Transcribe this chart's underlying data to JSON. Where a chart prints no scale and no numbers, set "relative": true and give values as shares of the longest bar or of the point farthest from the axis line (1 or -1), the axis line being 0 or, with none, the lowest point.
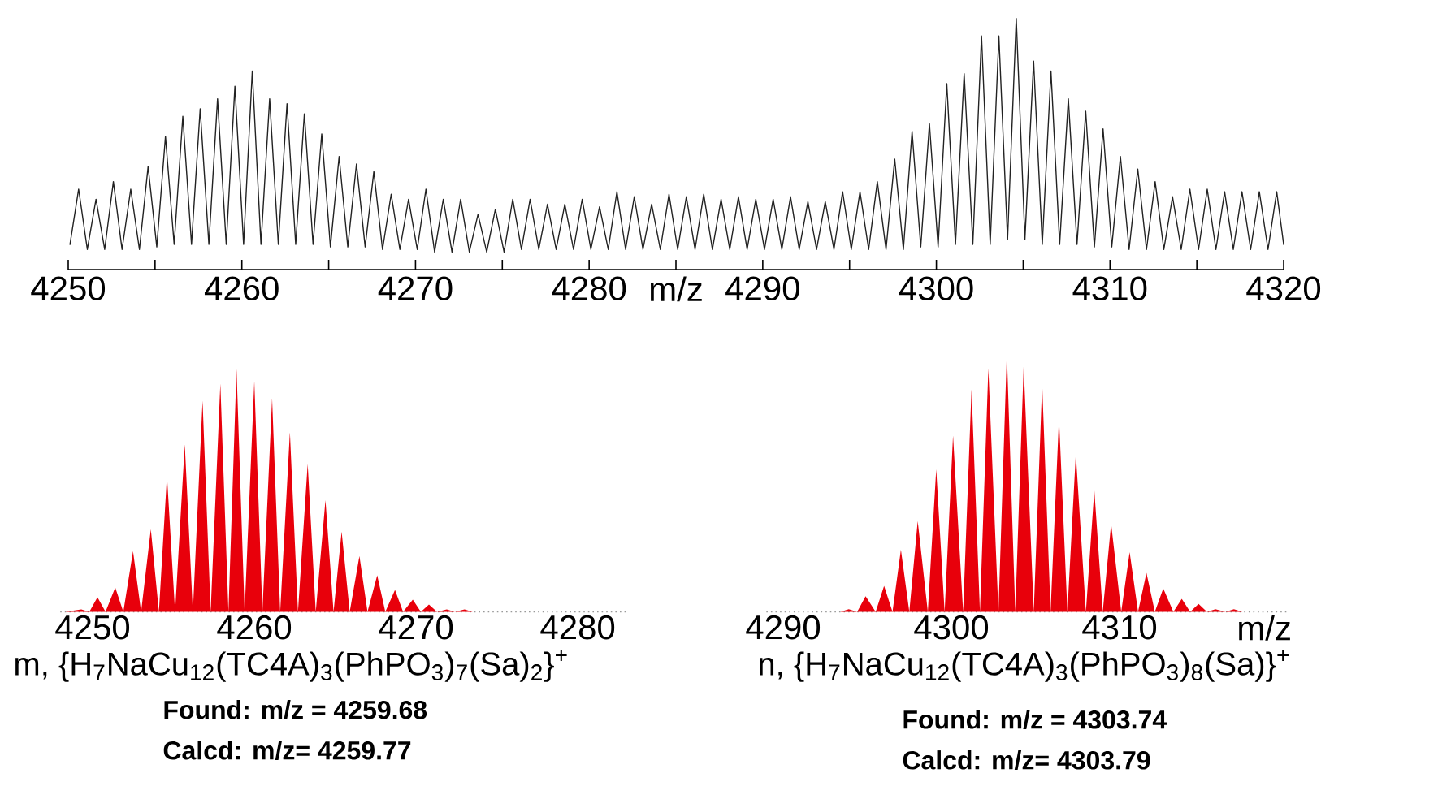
{
  "chart_data": [
    {
      "type": "line",
      "relative": true,
      "xlabel": "m/z",
      "color": "#222222",
      "xlim": [
        4250,
        4320
      ],
      "xticks": [
        4250,
        {
          "value": 4255,
          "label": null
        },
        4260,
        {
          "value": 4265,
          "label": null
        },
        4270,
        {
          "value": 4275,
          "label": null
        },
        4280,
        {
          "value": 4285,
          "label": null
        },
        4290,
        {
          "value": 4295,
          "label": null
        },
        4300,
        {
          "value": 4305,
          "label": null
        },
        4310,
        {
          "value": 4315,
          "label": null
        },
        4320
      ],
      "x": [
        4250.1,
        4250.6,
        4251.1,
        4251.6,
        4252.1,
        4252.6,
        4253.1,
        4253.6,
        4254.1,
        4254.6,
        4255.1,
        4255.6,
        4256.1,
        4256.6,
        4257.1,
        4257.6,
        4258.1,
        4258.6,
        4259.1,
        4259.6,
        4260.1,
        4260.6,
        4261.1,
        4261.6,
        4262.1,
        4262.6,
        4263.1,
        4263.6,
        4264.1,
        4264.6,
        4265.1,
        4265.6,
        4266.1,
        4266.6,
        4267.1,
        4267.6,
        4268.1,
        4268.6,
        4269.1,
        4269.6,
        4270.1,
        4270.6,
        4271.1,
        4271.6,
        4272.1,
        4272.6,
        4273.1,
        4273.6,
        4274.1,
        4274.6,
        4275.1,
        4275.6,
        4276.1,
        4276.6,
        4277.1,
        4277.6,
        4278.1,
        4278.6,
        4279.1,
        4279.6,
        4280.1,
        4280.6,
        4281.1,
        4281.6,
        4282.1,
        4282.6,
        4283.1,
        4283.6,
        4284.1,
        4284.6,
        4285.1,
        4285.6,
        4286.1,
        4286.6,
        4287.1,
        4287.6,
        4288.1,
        4288.6,
        4289.1,
        4289.6,
        4290.1,
        4290.6,
        4291.1,
        4291.6,
        4292.1,
        4292.6,
        4293.1,
        4293.6,
        4294.1,
        4294.6,
        4295.1,
        4295.6,
        4296.1,
        4296.6,
        4297.1,
        4297.6,
        4298.1,
        4298.6,
        4299.1,
        4299.6,
        4300.1,
        4300.6,
        4301.1,
        4301.6,
        4302.1,
        4302.6,
        4303.1,
        4303.6,
        4304.1,
        4304.6,
        4305.1,
        4305.6,
        4306.1,
        4306.6,
        4307.1,
        4307.6,
        4308.1,
        4308.6,
        4309.1,
        4309.6,
        4310.1,
        4310.6,
        4311.1,
        4311.6,
        4312.1,
        4312.6,
        4313.1,
        4313.6,
        4314.1,
        4314.6,
        4315.1,
        4315.6,
        4316.1,
        4316.6,
        4317.1,
        4317.6,
        4318.1,
        4318.6,
        4319.1,
        4319.6,
        4320.0
      ],
      "values": [
        0.1,
        0.32,
        0.08,
        0.28,
        0.08,
        0.35,
        0.08,
        0.32,
        0.08,
        0.41,
        0.09,
        0.53,
        0.1,
        0.61,
        0.1,
        0.64,
        0.1,
        0.68,
        0.1,
        0.73,
        0.1,
        0.79,
        0.1,
        0.68,
        0.1,
        0.66,
        0.1,
        0.62,
        0.1,
        0.54,
        0.09,
        0.45,
        0.09,
        0.42,
        0.09,
        0.39,
        0.08,
        0.3,
        0.08,
        0.28,
        0.08,
        0.32,
        0.07,
        0.28,
        0.07,
        0.28,
        0.07,
        0.22,
        0.07,
        0.24,
        0.07,
        0.28,
        0.08,
        0.28,
        0.08,
        0.26,
        0.08,
        0.26,
        0.08,
        0.28,
        0.08,
        0.25,
        0.08,
        0.31,
        0.08,
        0.29,
        0.08,
        0.26,
        0.08,
        0.3,
        0.08,
        0.29,
        0.08,
        0.3,
        0.08,
        0.28,
        0.08,
        0.29,
        0.08,
        0.28,
        0.08,
        0.28,
        0.08,
        0.29,
        0.08,
        0.27,
        0.08,
        0.27,
        0.08,
        0.31,
        0.08,
        0.31,
        0.08,
        0.35,
        0.08,
        0.44,
        0.08,
        0.55,
        0.09,
        0.58,
        0.09,
        0.74,
        0.1,
        0.78,
        0.1,
        0.93,
        0.1,
        0.93,
        0.12,
        1,
        0.12,
        0.83,
        0.1,
        0.79,
        0.1,
        0.68,
        0.1,
        0.63,
        0.09,
        0.56,
        0.09,
        0.45,
        0.08,
        0.4,
        0.08,
        0.35,
        0.08,
        0.29,
        0.08,
        0.32,
        0.08,
        0.32,
        0.08,
        0.31,
        0.08,
        0.31,
        0.08,
        0.31,
        0.08,
        0.31,
        0.1
      ]
    },
    {
      "type": "area",
      "relative": true,
      "color": "#e8000b",
      "xlim": [
        4248,
        4283
      ],
      "xticks": [
        4250,
        4260,
        4270,
        4280
      ],
      "x": [
        4248.3,
        4249.3,
        4249.8,
        4250.3,
        4250.8,
        4251.4,
        4251.9,
        4252.5,
        4253.0,
        4253.6,
        4254.1,
        4254.6,
        4255.1,
        4255.7,
        4256.2,
        4256.8,
        4257.3,
        4257.9,
        4258.4,
        4258.9,
        4259.4,
        4260.0,
        4260.5,
        4261.1,
        4261.6,
        4262.2,
        4262.7,
        4263.3,
        4263.8,
        4264.4,
        4264.9,
        4265.4,
        4265.9,
        4266.5,
        4267.0,
        4267.6,
        4268.1,
        4268.7,
        4269.2,
        4269.8,
        4270.3,
        4270.8,
        4271.3,
        4271.9,
        4272.4,
        4273.0,
        4273.5,
        4276.1
      ],
      "values": [
        0,
        0.01,
        0,
        0.06,
        0,
        0.1,
        0,
        0.25,
        0,
        0.34,
        0,
        0.56,
        0,
        0.69,
        0,
        0.87,
        0,
        0.94,
        0,
        1,
        0,
        0.95,
        0,
        0.88,
        0,
        0.74,
        0,
        0.61,
        0,
        0.46,
        0,
        0.33,
        0,
        0.23,
        0,
        0.15,
        0,
        0.09,
        0,
        0.05,
        0,
        0.03,
        0,
        0.01,
        0,
        0.01,
        0,
        0
      ],
      "annotations": [
        "m, {H$_{7}$NaCu$_{12}$(TC4A)$_{3}$(PhPO$_{3}$)$_{7}$(Sa)$_{2}$}$^{+}$",
        "Found: m/z = 4259.68",
        "Calcd: m/z= 4259.77"
      ]
    },
    {
      "type": "area",
      "relative": true,
      "color": "#e8000b",
      "xlabel": "m/z",
      "xlim": [
        4289,
        4320
      ],
      "xticks": [
        4290,
        4300,
        4310
      ],
      "x": [
        4291.9,
        4293.4,
        4293.9,
        4294.4,
        4294.9,
        4295.5,
        4296.0,
        4296.5,
        4297.0,
        4297.5,
        4298.0,
        4298.6,
        4299.1,
        4299.6,
        4300.1,
        4300.7,
        4301.2,
        4301.7,
        4302.2,
        4302.8,
        4303.3,
        4303.8,
        4304.3,
        4304.9,
        4305.4,
        4305.9,
        4306.4,
        4306.9,
        4307.4,
        4308.0,
        4308.5,
        4309.0,
        4309.5,
        4310.1,
        4310.6,
        4311.1,
        4311.6,
        4312.1,
        4312.6,
        4313.2,
        4313.7,
        4314.2,
        4314.7,
        4315.2,
        4315.7,
        4316.3,
        4316.8,
        4317.3,
        4319.8
      ],
      "values": [
        0,
        0,
        0.01,
        0,
        0.06,
        0,
        0.1,
        0,
        0.24,
        0,
        0.35,
        0,
        0.55,
        0,
        0.68,
        0,
        0.86,
        0,
        0.94,
        0,
        1,
        0,
        0.95,
        0,
        0.88,
        0,
        0.75,
        0,
        0.61,
        0,
        0.47,
        0,
        0.34,
        0,
        0.23,
        0,
        0.15,
        0,
        0.09,
        0,
        0.05,
        0,
        0.03,
        0,
        0.01,
        0,
        0.01,
        0,
        0
      ],
      "annotations": [
        "n, {H$_{7}$NaCu$_{12}$(TC4A)$_{3}$(PhPO$_{3}$)$_{8}$(Sa)}$^{+}$",
        "Found: m/z = 4303.74",
        "Calcd: m/z= 4303.79"
      ]
    }
  ]
}
